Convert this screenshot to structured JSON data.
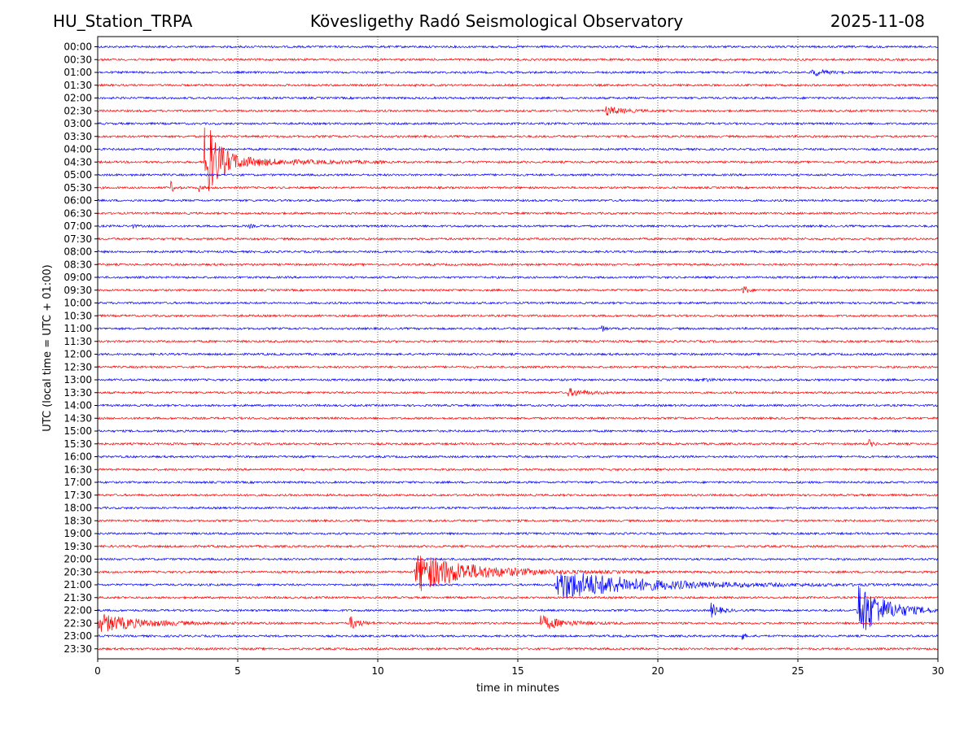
{
  "header": {
    "station": "HU_Station_TRPA",
    "observatory": "Kövesligethy Radó Seismological Observatory",
    "date": "2025-11-08"
  },
  "chart_data": {
    "type": "line",
    "title": "Kövesligethy Radó Seismological Observatory",
    "xlabel": "time in minutes",
    "ylabel": "UTC (local time = UTC + 01:00)",
    "xlim": [
      0,
      30
    ],
    "x_ticks": [
      "0",
      "5",
      "10",
      "15",
      "20",
      "25",
      "30"
    ],
    "x_tick_values": [
      0,
      5,
      10,
      15,
      20,
      25,
      30
    ],
    "grid": "vertical dotted at each x tick",
    "colors": {
      "even_rows": "#0000ff",
      "odd_rows": "#ff0000"
    },
    "rows": [
      "00:00",
      "00:30",
      "01:00",
      "01:30",
      "02:00",
      "02:30",
      "03:00",
      "03:30",
      "04:00",
      "04:30",
      "05:00",
      "05:30",
      "06:00",
      "06:30",
      "07:00",
      "07:30",
      "08:00",
      "08:30",
      "09:00",
      "09:30",
      "10:00",
      "10:30",
      "11:00",
      "11:30",
      "12:00",
      "12:30",
      "13:00",
      "13:30",
      "14:00",
      "14:30",
      "15:00",
      "15:30",
      "16:00",
      "16:30",
      "17:00",
      "17:30",
      "18:00",
      "18:30",
      "19:00",
      "19:30",
      "20:00",
      "20:30",
      "21:00",
      "21:30",
      "22:00",
      "22:30",
      "23:00",
      "23:30"
    ],
    "events": [
      {
        "row": "01:00",
        "start_min": 25.5,
        "duration_min": 1.6,
        "amplitude": 5,
        "kind": "local"
      },
      {
        "row": "02:30",
        "start_min": 18.1,
        "duration_min": 2.2,
        "amplitude": 6,
        "kind": "local"
      },
      {
        "row": "04:30",
        "start_min": 3.8,
        "duration_min": 4.0,
        "amplitude": 55,
        "kind": "spike"
      },
      {
        "row": "05:30",
        "start_min": 2.6,
        "duration_min": 0.4,
        "amplitude": 8,
        "kind": "local"
      },
      {
        "row": "05:30",
        "start_min": 3.6,
        "duration_min": 0.4,
        "amplitude": 5,
        "kind": "local"
      },
      {
        "row": "07:00",
        "start_min": 1.2,
        "duration_min": 0.6,
        "amplitude": 2,
        "kind": "local"
      },
      {
        "row": "07:00",
        "start_min": 5.4,
        "duration_min": 0.6,
        "amplitude": 2,
        "kind": "local"
      },
      {
        "row": "09:30",
        "start_min": 23.0,
        "duration_min": 0.6,
        "amplitude": 9,
        "kind": "local"
      },
      {
        "row": "11:00",
        "start_min": 18.0,
        "duration_min": 0.4,
        "amplitude": 4,
        "kind": "local"
      },
      {
        "row": "13:00",
        "start_min": 21.6,
        "duration_min": 1.2,
        "amplitude": 2,
        "kind": "local"
      },
      {
        "row": "13:30",
        "start_min": 16.8,
        "duration_min": 2.2,
        "amplitude": 5,
        "kind": "local"
      },
      {
        "row": "15:30",
        "start_min": 27.5,
        "duration_min": 0.6,
        "amplitude": 6,
        "kind": "local"
      },
      {
        "row": "20:30",
        "start_min": 11.3,
        "duration_min": 6.0,
        "amplitude": 26,
        "kind": "teleseismic"
      },
      {
        "row": "21:00",
        "start_min": 16.3,
        "duration_min": 9.0,
        "amplitude": 20,
        "kind": "teleseismic"
      },
      {
        "row": "22:00",
        "start_min": 21.9,
        "duration_min": 1.1,
        "amplitude": 9,
        "kind": "local"
      },
      {
        "row": "22:00",
        "start_min": 27.1,
        "duration_min": 2.9,
        "amplitude": 38,
        "kind": "teleseismic"
      },
      {
        "row": "22:30",
        "start_min": 0.0,
        "duration_min": 4.5,
        "amplitude": 12,
        "kind": "teleseismic"
      },
      {
        "row": "22:30",
        "start_min": 9.0,
        "duration_min": 1.2,
        "amplitude": 9,
        "kind": "local"
      },
      {
        "row": "22:30",
        "start_min": 15.8,
        "duration_min": 3.2,
        "amplitude": 9,
        "kind": "local"
      },
      {
        "row": "23:00",
        "start_min": 23.0,
        "duration_min": 0.4,
        "amplitude": 5,
        "kind": "local"
      }
    ]
  }
}
